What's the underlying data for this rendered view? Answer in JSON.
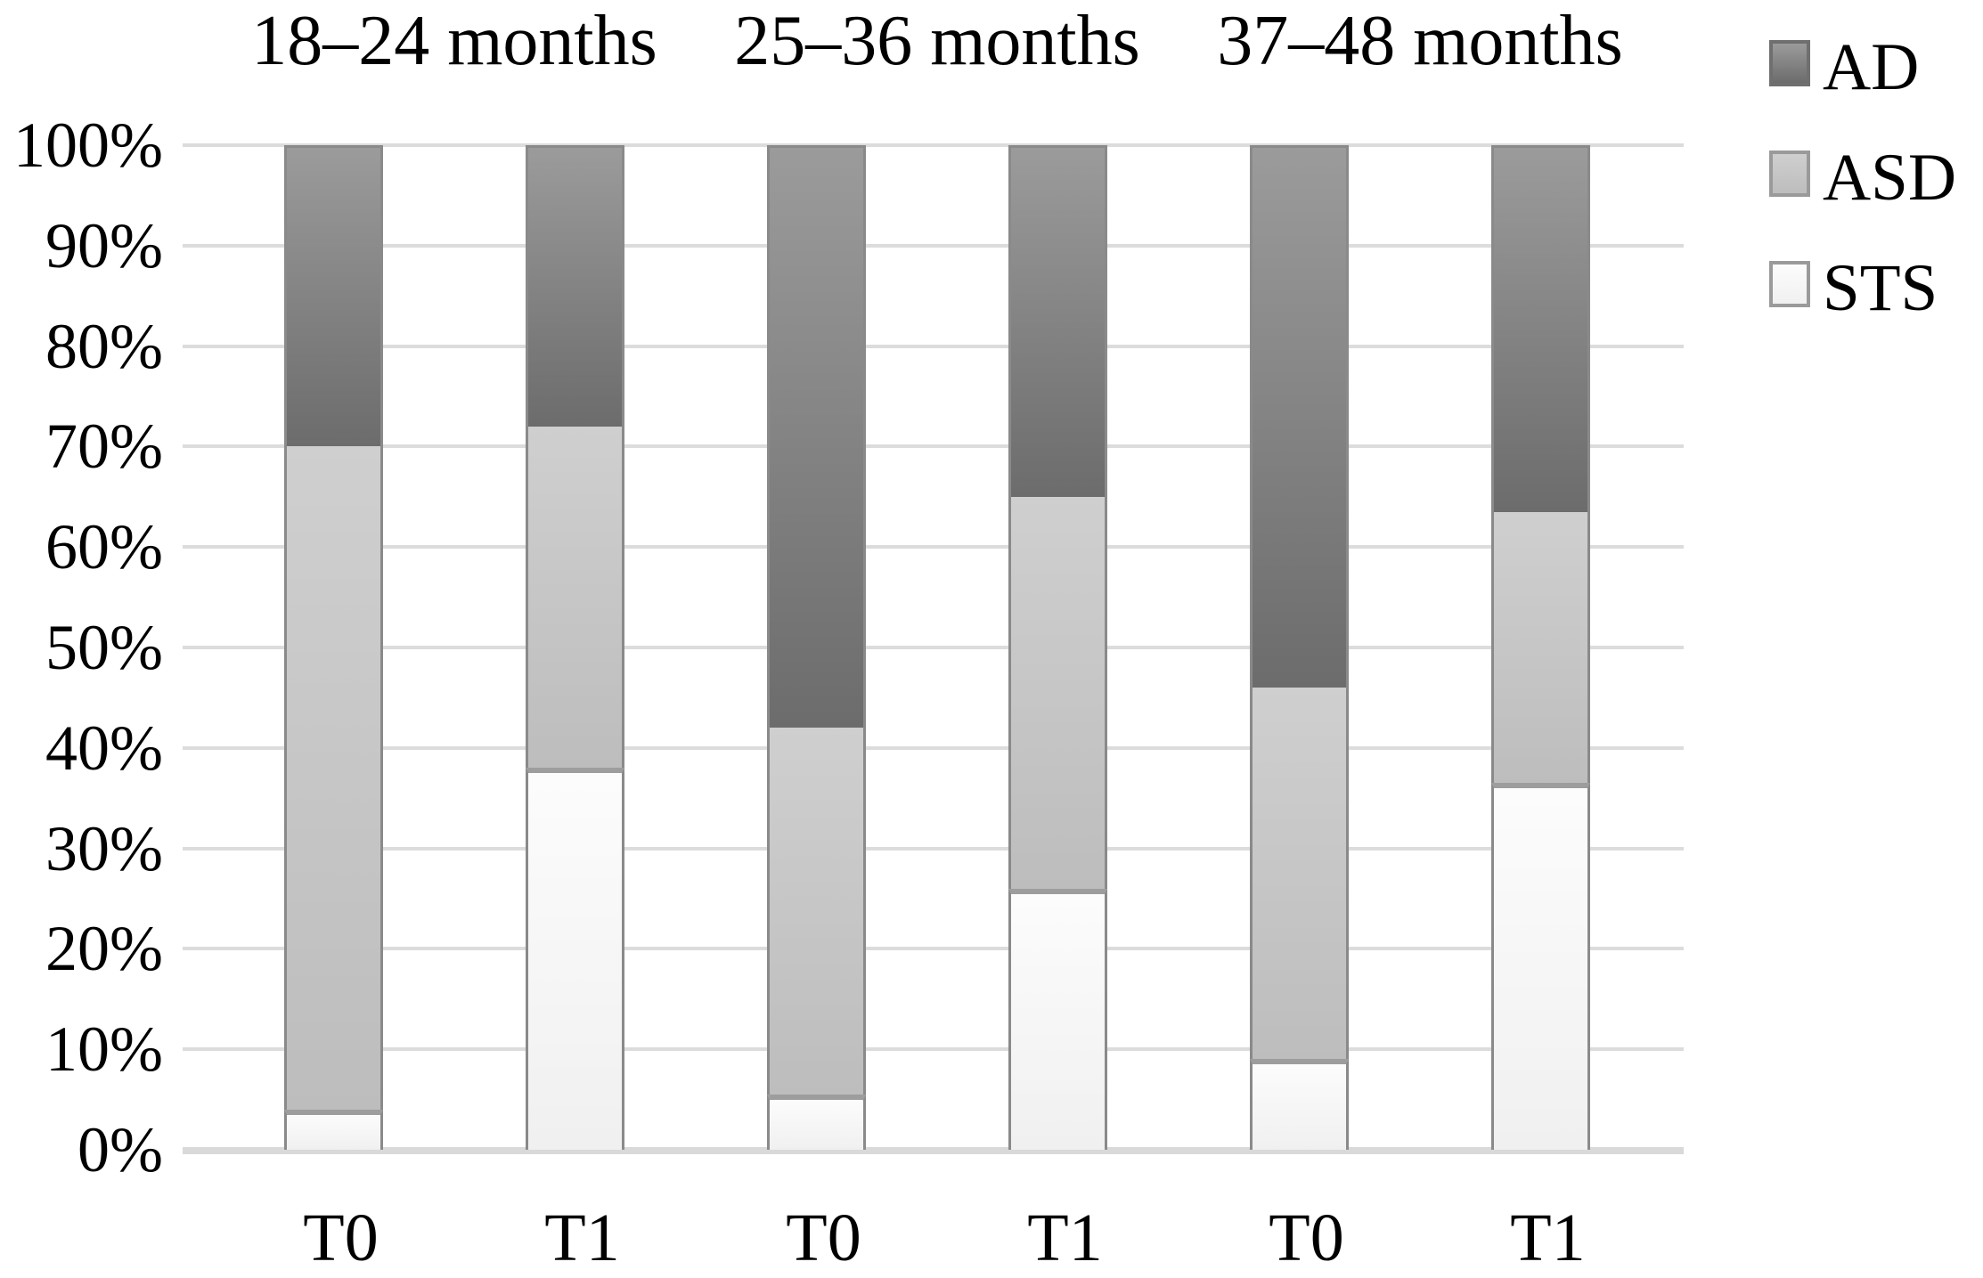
{
  "chart_data": {
    "type": "bar",
    "variant": "100-percent-stacked-column",
    "title": "",
    "groups": [
      {
        "label": "18–24 months"
      },
      {
        "label": "25–36 months"
      },
      {
        "label": "37–48 months"
      }
    ],
    "categories": [
      "T0",
      "T1",
      "T0",
      "T1",
      "T0",
      "T1"
    ],
    "stack_order_bottom_to_top": [
      "STS",
      "ASD",
      "AD"
    ],
    "series": [
      {
        "name": "AD",
        "values": [
          30,
          28,
          58,
          35,
          54,
          36.5
        ],
        "color_top": "#9b9b9b",
        "color_bottom": "#6c6c6c",
        "swatch_border": "#6f6f6f"
      },
      {
        "name": "ASD",
        "values": [
          66,
          34,
          36.5,
          39,
          37,
          27
        ],
        "color_top": "#cfcfcf",
        "color_bottom": "#bdbdbd",
        "swatch_border": "#9a9a9a"
      },
      {
        "name": "STS",
        "values": [
          4,
          38,
          5.5,
          26,
          9,
          36.5
        ],
        "color_top": "#fcfcfc",
        "color_bottom": "#f0f0f0",
        "swatch_border": "#9a9a9a"
      }
    ],
    "legend": {
      "position": "top-right",
      "entries": [
        "AD",
        "ASD",
        "STS"
      ]
    },
    "y_axis": {
      "min": 0,
      "max": 100,
      "ticks": [
        "100%",
        "90%",
        "80%",
        "70%",
        "60%",
        "50%",
        "40%",
        "30%",
        "20%",
        "10%",
        "0%"
      ],
      "grid": true
    },
    "x_axis": {
      "labels": [
        "T0",
        "T1",
        "T0",
        "T1",
        "T0",
        "T1"
      ]
    },
    "colors": {
      "background": "#ffffff",
      "grid": "#dcdcdc",
      "baseline": "#d9d9d9",
      "bar_border": "#8a8a8a",
      "segment_divider": "#9d9d9d",
      "text": "#000000"
    }
  }
}
